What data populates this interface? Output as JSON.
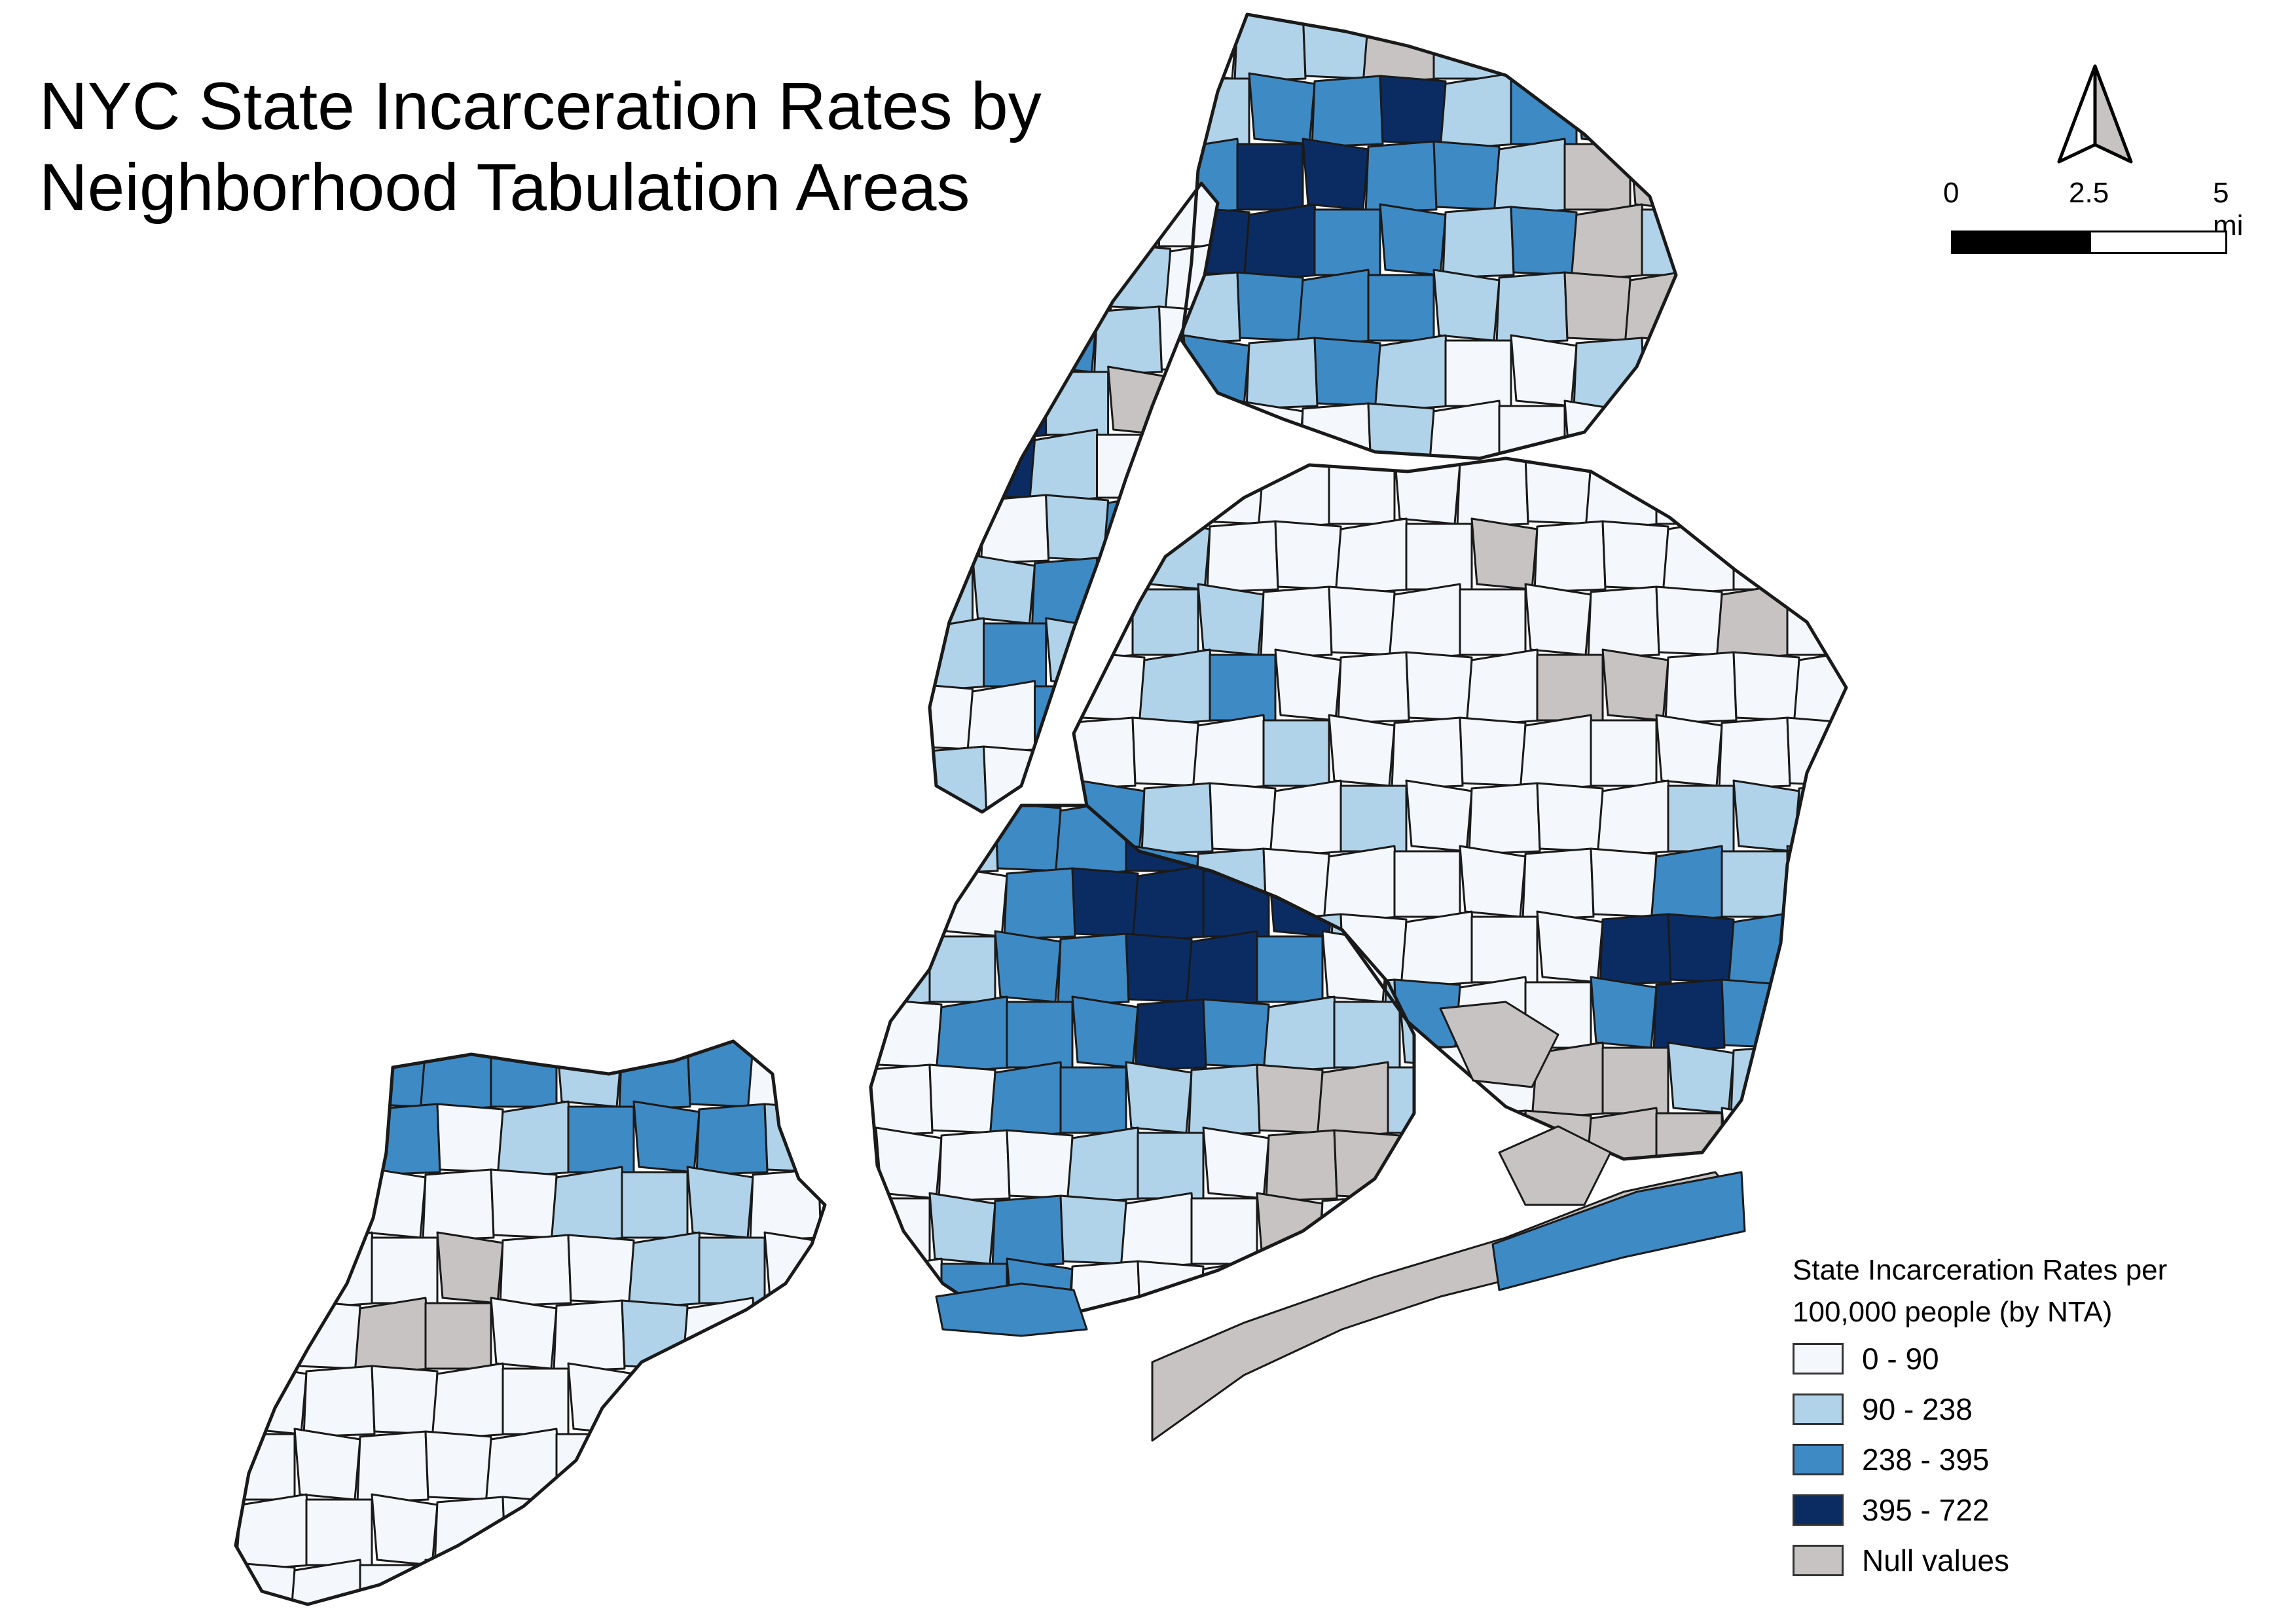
{
  "title": {
    "line1": "NYC State Incarceration Rates by",
    "line2": "Neighborhood Tabulation Areas"
  },
  "north_arrow": {
    "icon": "north-arrow-icon"
  },
  "scale_bar": {
    "labels": [
      "0",
      "2.5",
      "5 mi"
    ]
  },
  "legend": {
    "title_line1": "State Incarceration Rates per",
    "title_line2": "100,000 people (by NTA)",
    "classes": [
      {
        "label": "0 - 90",
        "color": "#f4f8fd"
      },
      {
        "label": "90 - 238",
        "color": "#b1d3ea"
      },
      {
        "label": "238 - 395",
        "color": "#3e8ac5"
      },
      {
        "label": "395 - 722",
        "color": "#0b2c63"
      },
      {
        "label": "Null values",
        "color": "#c7c3c3"
      }
    ]
  },
  "colors": {
    "boundary": "#1a1a1a",
    "background": "#ffffff"
  }
}
